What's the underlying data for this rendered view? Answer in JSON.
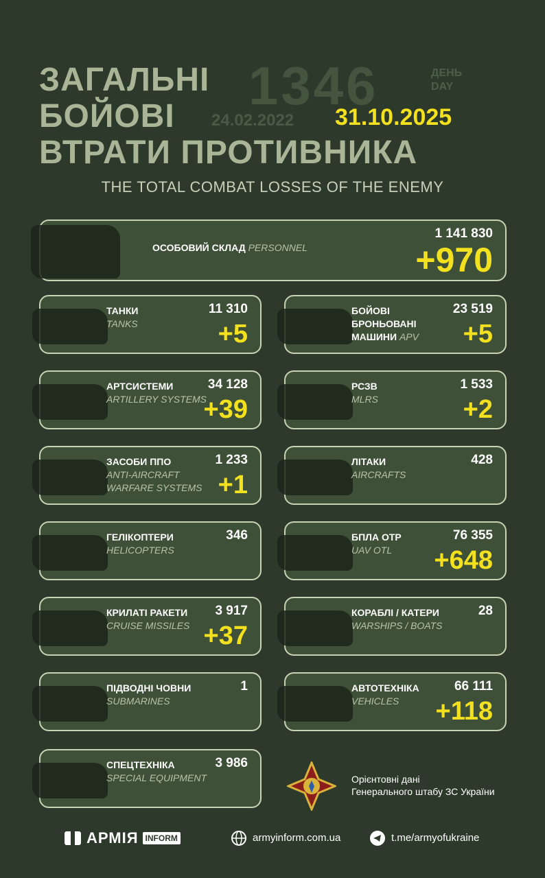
{
  "header": {
    "title_lines": [
      "ЗАГАЛЬНІ",
      "БОЙОВІ",
      "ВТРАТИ ПРОТИВНИКА"
    ],
    "day_number": "1346",
    "day_label_ua": "ДЕНЬ",
    "day_label_en": "DAY",
    "start_date": "24.02.2022",
    "date": "31.10.2025",
    "subtitle": "THE TOTAL COMBAT LOSSES OF THE ENEMY"
  },
  "cards": [
    {
      "name_ua": "ОСОБОВИЙ СКЛАД",
      "name_en": "PERSONNEL",
      "total": "1 141 830",
      "delta": "+970"
    },
    {
      "name_ua": "ТАНКИ",
      "name_en": "TANKS",
      "total": "11 310",
      "delta": "+5"
    },
    {
      "name_ua": "БОЙОВІ БРОНЬОВАНІ МАШИНИ",
      "name_en": "APV",
      "total": "23 519",
      "delta": "+5"
    },
    {
      "name_ua": "АРТСИСТЕМИ",
      "name_en": "ARTILLERY SYSTEMS",
      "total": "34 128",
      "delta": "+39"
    },
    {
      "name_ua": "РСЗВ",
      "name_en": "MLRS",
      "total": "1 533",
      "delta": "+2"
    },
    {
      "name_ua": "ЗАСОБИ ППО",
      "name_en": "ANTI-AIRCRAFT WARFARE SYSTEMS",
      "total": "1 233",
      "delta": "+1"
    },
    {
      "name_ua": "ЛІТАКИ",
      "name_en": "AIRCRAFTS",
      "total": "428"
    },
    {
      "name_ua": "ГЕЛІКОПТЕРИ",
      "name_en": "HELICOPTERS",
      "total": "346"
    },
    {
      "name_ua": "БПЛА ОТР",
      "name_en": "UAV OTL",
      "total": "76 355",
      "delta": "+648"
    },
    {
      "name_ua": "КРИЛАТІ РАКЕТИ",
      "name_en": "CRUISE MISSILES",
      "total": "3 917",
      "delta": "+37"
    },
    {
      "name_ua": "КОРАБЛІ / КАТЕРИ",
      "name_en": "WARSHIPS / BOATS",
      "total": "28"
    },
    {
      "name_ua": "ПІДВОДНІ ЧОВНИ",
      "name_en": "SUBMARINES",
      "total": "1"
    },
    {
      "name_ua": "АВТОТЕХНІКА",
      "name_en": "VEHICLES",
      "total": "66 111",
      "delta": "+118"
    },
    {
      "name_ua": "СПЕЦТЕХНІКА",
      "name_en": "SPECIAL EQUIPMENT",
      "total": "3 986"
    }
  ],
  "note": {
    "line1": "Орієнтовні дані",
    "line2": "Генерального штабу ЗС України"
  },
  "footer": {
    "brand": "АРМІЯ",
    "brand_tag": "INFORM",
    "site": "armyinform.com.ua",
    "telegram": "t.me/armyofukraine"
  }
}
